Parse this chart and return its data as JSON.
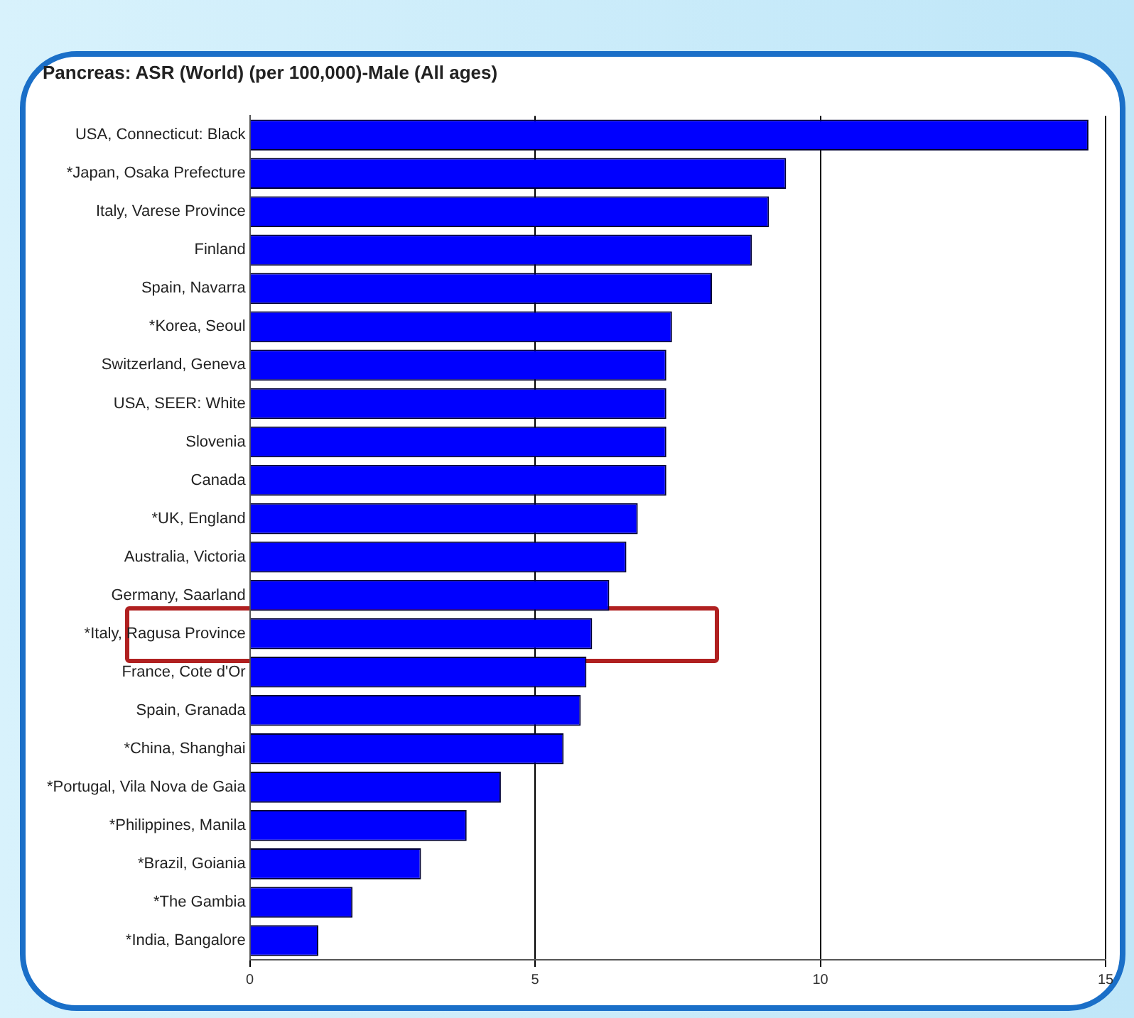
{
  "chart_data": {
    "type": "bar",
    "orientation": "horizontal",
    "title": "Pancreas: ASR (World) (per 100,000)-Male (All ages)",
    "categories": [
      "USA, Connecticut: Black",
      "*Japan, Osaka Prefecture",
      "Italy, Varese Province",
      "Finland",
      "Spain, Navarra",
      "*Korea, Seoul",
      "Switzerland, Geneva",
      "USA, SEER: White",
      "Slovenia",
      "Canada",
      "*UK, England",
      "Australia, Victoria",
      "Germany, Saarland",
      "*Italy, Ragusa Province",
      "France, Cote d'Or",
      "Spain, Granada",
      "*China, Shanghai",
      "*Portugal, Vila Nova de Gaia",
      "*Philippines, Manila",
      "*Brazil, Goiania",
      "*The Gambia",
      "*India, Bangalore"
    ],
    "values": [
      14.7,
      9.4,
      9.1,
      8.8,
      8.1,
      7.4,
      7.3,
      7.3,
      7.3,
      7.3,
      6.8,
      6.6,
      6.3,
      6.0,
      5.9,
      5.8,
      5.5,
      4.4,
      3.8,
      3.0,
      1.8,
      1.2
    ],
    "color": "#0000ff",
    "xlim": [
      0,
      15
    ],
    "xticks": [
      0,
      5,
      10,
      15
    ],
    "grid": "x"
  }
}
